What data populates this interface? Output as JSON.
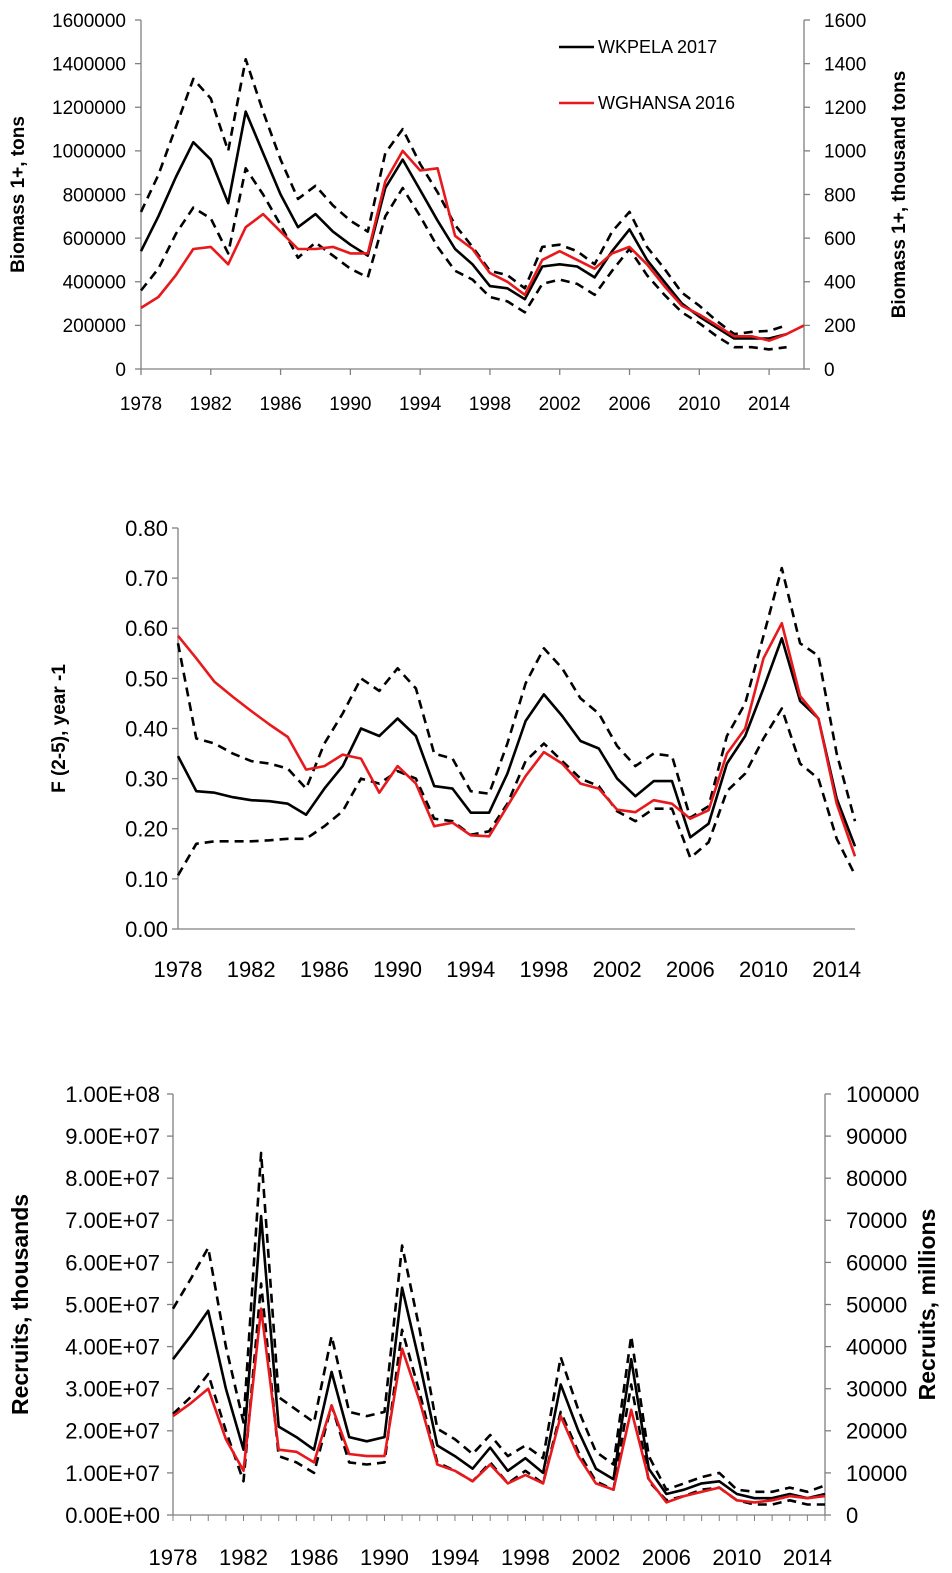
{
  "colors": {
    "wkpela": "#000000",
    "wghansa": "#e8191c",
    "axis": "#808080"
  },
  "chart_data": [
    {
      "type": "line",
      "title": "",
      "x_ticks": [
        1978,
        1982,
        1986,
        1990,
        1994,
        1998,
        2002,
        2006,
        2010,
        2014
      ],
      "xlim": [
        1978,
        2016
      ],
      "ylabel": "Biomass 1+, tons",
      "ylim": [
        0,
        1600000
      ],
      "y_ticks": [
        "0",
        "200000",
        "400000",
        "600000",
        "800000",
        "1000000",
        "1200000",
        "1400000",
        "1600000"
      ],
      "ylabel_right": "Biomass 1+, thousand tons",
      "y_ticks_right": [
        "0",
        "200",
        "400",
        "600",
        "800",
        "1000",
        "1200",
        "1400",
        "1600"
      ],
      "legend": {
        "placement": "top-center",
        "entries": [
          "WKPELA 2017",
          "WGHANSA 2016"
        ]
      },
      "series": [
        {
          "name": "WKPELA 2017",
          "style": "solid",
          "color": "#000000",
          "x_start": 1978,
          "values": [
            540000,
            700000,
            880000,
            1040000,
            960000,
            760000,
            1180000,
            990000,
            800000,
            650000,
            710000,
            630000,
            570000,
            520000,
            830000,
            960000,
            820000,
            680000,
            550000,
            480000,
            380000,
            370000,
            320000,
            470000,
            480000,
            470000,
            420000,
            540000,
            640000,
            500000,
            400000,
            300000,
            240000,
            190000,
            140000,
            140000,
            140000,
            160000
          ]
        },
        {
          "name": "",
          "style": "dashed",
          "color": "#000000",
          "x_start": 1978,
          "values": [
            720000,
            890000,
            1110000,
            1330000,
            1240000,
            1000000,
            1420000,
            1180000,
            960000,
            780000,
            840000,
            750000,
            680000,
            630000,
            990000,
            1100000,
            940000,
            810000,
            660000,
            560000,
            450000,
            430000,
            370000,
            560000,
            570000,
            540000,
            480000,
            630000,
            720000,
            560000,
            460000,
            350000,
            290000,
            220000,
            160000,
            170000,
            175000,
            200000
          ]
        },
        {
          "name": "",
          "style": "dashed",
          "color": "#000000",
          "x_start": 1978,
          "values": [
            360000,
            460000,
            620000,
            740000,
            690000,
            530000,
            920000,
            800000,
            660000,
            510000,
            580000,
            520000,
            460000,
            420000,
            700000,
            830000,
            700000,
            560000,
            450000,
            410000,
            330000,
            310000,
            260000,
            390000,
            410000,
            390000,
            340000,
            450000,
            550000,
            430000,
            340000,
            260000,
            210000,
            150000,
            100000,
            100000,
            90000,
            100000
          ]
        },
        {
          "name": "WGHANSA 2016",
          "style": "solid",
          "color": "#e8191c",
          "x_start": 1978,
          "values": [
            280000,
            330000,
            430000,
            550000,
            560000,
            480000,
            650000,
            710000,
            630000,
            550000,
            550000,
            560000,
            530000,
            530000,
            860000,
            1000000,
            910000,
            920000,
            610000,
            550000,
            440000,
            400000,
            340000,
            500000,
            540000,
            500000,
            460000,
            530000,
            560000,
            480000,
            380000,
            290000,
            250000,
            200000,
            150000,
            150000,
            130000,
            160000,
            200000
          ]
        }
      ]
    },
    {
      "type": "line",
      "title": "",
      "x_ticks": [
        1978,
        1982,
        1986,
        1990,
        1994,
        1998,
        2002,
        2006,
        2010,
        2014
      ],
      "xlim": [
        1978,
        2015
      ],
      "ylabel": "F (2-5), year -1",
      "ylim": [
        0,
        0.8
      ],
      "y_ticks": [
        "0.00",
        "0.10",
        "0.20",
        "0.30",
        "0.40",
        "0.50",
        "0.60",
        "0.70",
        "0.80"
      ],
      "series": [
        {
          "name": "WKPELA 2017",
          "style": "solid",
          "color": "#000000",
          "x_start": 1978,
          "values": [
            0.345,
            0.275,
            0.272,
            0.263,
            0.257,
            0.255,
            0.25,
            0.228,
            0.28,
            0.325,
            0.4,
            0.385,
            0.42,
            0.385,
            0.285,
            0.28,
            0.232,
            0.232,
            0.31,
            0.415,
            0.468,
            0.425,
            0.375,
            0.36,
            0.3,
            0.265,
            0.295,
            0.295,
            0.183,
            0.21,
            0.33,
            0.385,
            0.48,
            0.58,
            0.455,
            0.42,
            0.26,
            0.165
          ]
        },
        {
          "name": "",
          "style": "dashed",
          "color": "#000000",
          "x_start": 1978,
          "values": [
            0.57,
            0.38,
            0.37,
            0.35,
            0.335,
            0.33,
            0.32,
            0.28,
            0.37,
            0.43,
            0.5,
            0.475,
            0.52,
            0.48,
            0.35,
            0.34,
            0.275,
            0.27,
            0.37,
            0.49,
            0.56,
            0.52,
            0.46,
            0.43,
            0.365,
            0.325,
            0.35,
            0.345,
            0.222,
            0.245,
            0.385,
            0.45,
            0.585,
            0.72,
            0.57,
            0.545,
            0.35,
            0.215
          ]
        },
        {
          "name": "",
          "style": "dashed",
          "color": "#000000",
          "x_start": 1978,
          "values": [
            0.107,
            0.17,
            0.175,
            0.175,
            0.175,
            0.177,
            0.18,
            0.18,
            0.205,
            0.235,
            0.3,
            0.29,
            0.315,
            0.3,
            0.22,
            0.215,
            0.188,
            0.195,
            0.25,
            0.335,
            0.37,
            0.335,
            0.3,
            0.285,
            0.235,
            0.215,
            0.24,
            0.24,
            0.142,
            0.173,
            0.275,
            0.31,
            0.38,
            0.44,
            0.33,
            0.3,
            0.18,
            0.108
          ]
        },
        {
          "name": "WGHANSA 2016",
          "style": "solid",
          "color": "#e8191c",
          "x_start": 1978,
          "values": [
            0.585,
            0.54,
            0.493,
            0.463,
            0.435,
            0.408,
            0.383,
            0.318,
            0.325,
            0.348,
            0.34,
            0.272,
            0.325,
            0.29,
            0.205,
            0.212,
            0.187,
            0.185,
            0.245,
            0.305,
            0.353,
            0.33,
            0.29,
            0.28,
            0.238,
            0.233,
            0.257,
            0.25,
            0.22,
            0.237,
            0.35,
            0.4,
            0.54,
            0.61,
            0.465,
            0.42,
            0.25,
            0.145
          ]
        }
      ]
    },
    {
      "type": "line",
      "title": "",
      "x_ticks": [
        1978,
        1982,
        1986,
        1990,
        1994,
        1998,
        2002,
        2006,
        2010,
        2014
      ],
      "xlim": [
        1978,
        2015
      ],
      "ylabel": "Recruits, thousands",
      "ylim": [
        0,
        100000000
      ],
      "y_ticks": [
        "0.00E+00",
        "1.00E+07",
        "2.00E+07",
        "3.00E+07",
        "4.00E+07",
        "5.00E+07",
        "6.00E+07",
        "7.00E+07",
        "8.00E+07",
        "9.00E+07",
        "1.00E+08"
      ],
      "ylabel_right": "Recruits, millions",
      "y_ticks_right": [
        "0",
        "10000",
        "20000",
        "30000",
        "40000",
        "50000",
        "60000",
        "70000",
        "80000",
        "90000",
        "100000"
      ],
      "series": [
        {
          "name": "WKPELA 2017",
          "style": "solid",
          "color": "#000000",
          "x_start": 1978,
          "values": [
            37000000,
            42500000,
            48500000,
            30000000,
            15500000,
            71000000,
            21000000,
            18500000,
            15500000,
            34000000,
            18500000,
            17500000,
            18500000,
            54000000,
            36000000,
            16500000,
            14000000,
            11000000,
            16000000,
            10500000,
            13500000,
            10000000,
            31000000,
            20000000,
            11000000,
            8500000,
            37000000,
            11000000,
            5000000,
            6000000,
            7500000,
            8000000,
            5000000,
            4000000,
            4000000,
            5000000,
            4000000,
            5000000
          ]
        },
        {
          "name": "",
          "style": "dashed",
          "color": "#000000",
          "x_start": 1978,
          "values": [
            49000000,
            56000000,
            63500000,
            40000000,
            22000000,
            86000000,
            28000000,
            25000000,
            22000000,
            42500000,
            24500000,
            23500000,
            24500000,
            64000000,
            44000000,
            20500000,
            18000000,
            14500000,
            19000000,
            14000000,
            16500000,
            13500000,
            37500000,
            25000000,
            15000000,
            12000000,
            42500000,
            14000000,
            6000000,
            7500000,
            9000000,
            10000000,
            6000000,
            5500000,
            5500000,
            6500000,
            5500000,
            7000000
          ]
        },
        {
          "name": "",
          "style": "dashed",
          "color": "#000000",
          "x_start": 1978,
          "values": [
            24000000,
            28000000,
            33500000,
            20000000,
            8000000,
            55000000,
            14000000,
            12500000,
            10000000,
            26000000,
            12500000,
            12000000,
            12500000,
            44000000,
            29000000,
            12500000,
            10500000,
            8000000,
            12500000,
            7500000,
            10500000,
            7500000,
            24500000,
            15000000,
            8000000,
            6000000,
            31000000,
            8000000,
            3500000,
            4500000,
            6000000,
            6500000,
            3500000,
            2500000,
            2500000,
            3500000,
            2500000,
            2500000
          ]
        },
        {
          "name": "WGHANSA 2016",
          "style": "solid",
          "color": "#e8191c",
          "x_start": 1978,
          "values": [
            23500000,
            26500000,
            30000000,
            18000000,
            10500000,
            49000000,
            15500000,
            15000000,
            12500000,
            26000000,
            14500000,
            14000000,
            14000000,
            39500000,
            27000000,
            12000000,
            10500000,
            8000000,
            12000000,
            7500000,
            9500000,
            7500000,
            23500000,
            14000000,
            7500000,
            6000000,
            25000000,
            8500000,
            3000000,
            4500000,
            5500000,
            6500000,
            3500000,
            3000000,
            3500000,
            4500000,
            4000000,
            4500000
          ]
        }
      ]
    }
  ]
}
